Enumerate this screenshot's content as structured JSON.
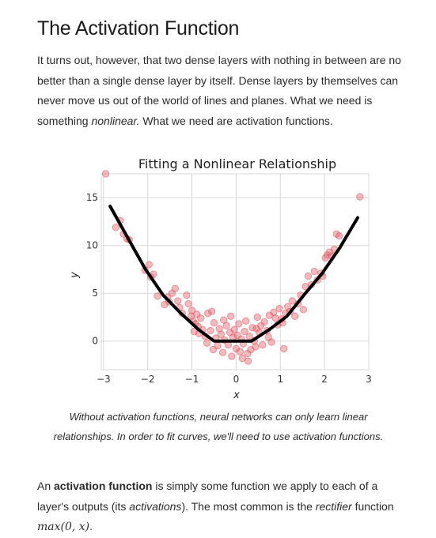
{
  "section": {
    "title": "The Activation Function",
    "intro": {
      "before_em": "It turns out, however, that two dense layers with nothing in between are no better than a single dense layer by itself. Dense layers by themselves can never move us out of the world of lines and planes. What we need is something ",
      "em": "nonlinear.",
      "after_em": " What we need are activation functions."
    },
    "caption": "Without activation functions, neural networks can only learn linear relationships. In order to fit curves, we'll need to use activation functions.",
    "def": {
      "t1": "An ",
      "bold": "activation function",
      "t2": " is simply some function we apply to each of a layer's outputs (its ",
      "em1": "activations",
      "t3": "). The most common is the ",
      "em2": "rectifier",
      "t4": " function ",
      "formula": "max(0, x)",
      "t5": "."
    }
  },
  "colors": {
    "scatter": "#e05a63",
    "fit": "#000000",
    "grid": "#d9d9d9"
  },
  "chart_data": {
    "type": "scatter",
    "title": "Fitting a Nonlinear Relationship",
    "xlabel": "x",
    "ylabel": "y",
    "xlim": [
      -3.05,
      3.0
    ],
    "ylim": [
      -3.0,
      17.5
    ],
    "xticks": [
      -3,
      -2,
      -1,
      0,
      1,
      2,
      3
    ],
    "yticks": [
      0,
      5,
      10,
      15
    ],
    "grid": true,
    "series": [
      {
        "kind": "scatter",
        "points": [
          [
            -2.95,
            17.5
          ],
          [
            -2.72,
            11.9
          ],
          [
            -2.62,
            12.6
          ],
          [
            -2.55,
            11.2
          ],
          [
            -2.47,
            10.7
          ],
          [
            -2.42,
            10.6
          ],
          [
            -2.06,
            7.4
          ],
          [
            -1.97,
            8.0
          ],
          [
            -1.93,
            6.7
          ],
          [
            -1.87,
            7.0
          ],
          [
            -1.78,
            4.7
          ],
          [
            -1.62,
            3.8
          ],
          [
            -1.52,
            4.1
          ],
          [
            -1.45,
            5.0
          ],
          [
            -1.38,
            5.5
          ],
          [
            -1.32,
            4.2
          ],
          [
            -1.28,
            3.5
          ],
          [
            -1.22,
            2.9
          ],
          [
            -1.12,
            4.8
          ],
          [
            -1.08,
            3.9
          ],
          [
            -1.02,
            2.6
          ],
          [
            -1.0,
            3.2
          ],
          [
            -0.97,
            2.1
          ],
          [
            -0.92,
            1.8
          ],
          [
            -0.89,
            2.8
          ],
          [
            -0.86,
            1.5
          ],
          [
            -0.84,
            0.8
          ],
          [
            -0.8,
            2.4
          ],
          [
            -0.76,
            1.2
          ],
          [
            -0.7,
            0.5
          ],
          [
            -0.64,
            2.9
          ],
          [
            -0.58,
            1.1
          ],
          [
            -0.55,
            3.1
          ],
          [
            -0.5,
            1.9
          ],
          [
            -0.46,
            0.3
          ],
          [
            -0.42,
            -0.5
          ],
          [
            -0.38,
            1.3
          ],
          [
            -0.34,
            0.7
          ],
          [
            -0.3,
            -1.2
          ],
          [
            -0.26,
            0.1
          ],
          [
            -0.22,
            1.6
          ],
          [
            -0.18,
            -0.4
          ],
          [
            -0.14,
            0.9
          ],
          [
            -0.1,
            -1.6
          ],
          [
            -0.07,
            0.4
          ],
          [
            -0.04,
            1.2
          ],
          [
            0.0,
            -0.8
          ],
          [
            0.03,
            0.6
          ],
          [
            0.06,
            1.8
          ],
          [
            0.09,
            -1.1
          ],
          [
            0.12,
            0.2
          ],
          [
            0.16,
            -0.3
          ],
          [
            0.19,
            1.0
          ],
          [
            0.22,
            2.1
          ],
          [
            0.26,
            -1.3
          ],
          [
            0.3,
            0.5
          ],
          [
            0.33,
            -0.9
          ],
          [
            0.37,
            1.4
          ],
          [
            0.41,
            0.0
          ],
          [
            0.44,
            -0.6
          ],
          [
            0.48,
            2.5
          ],
          [
            0.52,
            0.9
          ],
          [
            0.56,
            1.6
          ],
          [
            0.6,
            -0.4
          ],
          [
            0.64,
            2.0
          ],
          [
            0.7,
            1.1
          ],
          [
            0.75,
            2.7
          ],
          [
            0.8,
            -0.1
          ],
          [
            0.85,
            3.0
          ],
          [
            0.89,
            2.4
          ],
          [
            0.94,
            1.7
          ],
          [
            0.98,
            3.4
          ],
          [
            1.03,
            2.3
          ],
          [
            1.08,
            -0.8
          ],
          [
            1.12,
            2.9
          ],
          [
            1.17,
            3.6
          ],
          [
            1.22,
            3.1
          ],
          [
            1.27,
            4.2
          ],
          [
            1.33,
            2.6
          ],
          [
            1.4,
            3.9
          ],
          [
            1.46,
            4.8
          ],
          [
            1.52,
            3.3
          ],
          [
            1.57,
            5.7
          ],
          [
            1.63,
            6.8
          ],
          [
            1.7,
            5.9
          ],
          [
            1.77,
            7.3
          ],
          [
            1.84,
            6.4
          ],
          [
            1.92,
            7.1
          ],
          [
            1.96,
            6.8
          ],
          [
            2.02,
            8.7
          ],
          [
            2.06,
            9.0
          ],
          [
            2.11,
            9.3
          ],
          [
            2.16,
            8.9
          ],
          [
            2.22,
            9.6
          ],
          [
            2.27,
            11.2
          ],
          [
            2.33,
            11.0
          ],
          [
            2.8,
            15.1
          ],
          [
            -1.55,
            4.6
          ],
          [
            -0.95,
            1.0
          ],
          [
            -0.66,
            -0.2
          ],
          [
            -0.28,
            2.2
          ],
          [
            0.14,
            -1.8
          ],
          [
            0.46,
            1.3
          ],
          [
            0.73,
            0.4
          ],
          [
            1.05,
            1.9
          ],
          [
            -0.12,
            2.6
          ],
          [
            0.27,
            -2.1
          ],
          [
            -0.52,
            -0.9
          ]
        ]
      },
      {
        "kind": "line",
        "name": "",
        "points": [
          [
            -2.85,
            14.1
          ],
          [
            -2.45,
            10.8
          ],
          [
            -2.05,
            7.5
          ],
          [
            -1.65,
            4.8
          ],
          [
            -1.25,
            2.9
          ],
          [
            -0.85,
            1.2
          ],
          [
            -0.5,
            0.0
          ],
          [
            0.35,
            0.0
          ],
          [
            0.75,
            1.2
          ],
          [
            1.15,
            2.6
          ],
          [
            1.55,
            4.9
          ],
          [
            1.95,
            7.1
          ],
          [
            2.35,
            9.8
          ],
          [
            2.75,
            12.9
          ]
        ]
      }
    ]
  }
}
